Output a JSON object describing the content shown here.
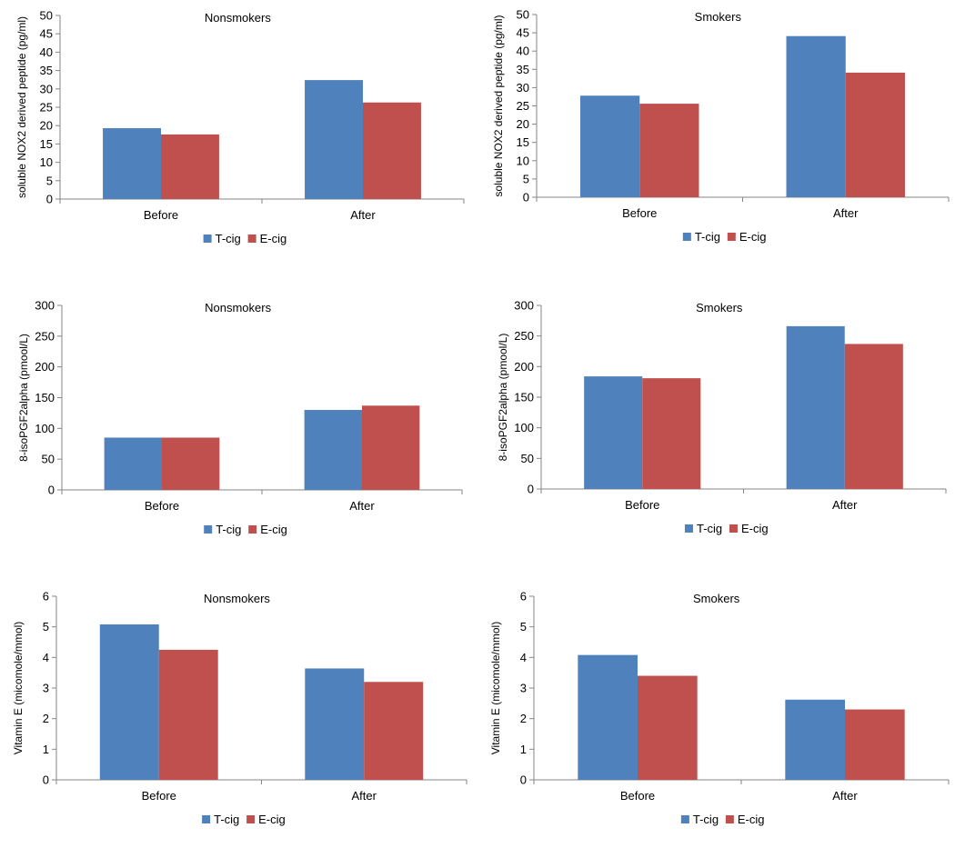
{
  "chart_data": [
    {
      "type": "bar",
      "title": "Nonsmokers",
      "ylabel": "soluble NOX2 derived peptide (pg/ml)",
      "xlabel": "",
      "categories": [
        "Before",
        "After"
      ],
      "ylim": [
        0,
        50
      ],
      "yticks": [
        "0",
        "5",
        "10",
        "15",
        "20",
        "25",
        "30",
        "35",
        "40",
        "45",
        "50"
      ],
      "grid": false,
      "legend_position": "bottom",
      "series": [
        {
          "name": "T-cig",
          "color": "#4F81BD",
          "values": [
            19.3,
            32.4
          ]
        },
        {
          "name": "E-cig",
          "color": "#C0504D",
          "values": [
            17.6,
            26.3
          ]
        }
      ]
    },
    {
      "type": "bar",
      "title": "Smokers",
      "ylabel": "soluble NOX2 derived peptide (pg/ml)",
      "xlabel": "",
      "categories": [
        "Before",
        "After"
      ],
      "ylim": [
        0,
        50
      ],
      "yticks": [
        "0",
        "5",
        "10",
        "15",
        "20",
        "25",
        "30",
        "35",
        "40",
        "45",
        "50"
      ],
      "grid": false,
      "legend_position": "bottom",
      "series": [
        {
          "name": "T-cig",
          "color": "#4F81BD",
          "values": [
            27.8,
            44.1
          ]
        },
        {
          "name": "E-cig",
          "color": "#C0504D",
          "values": [
            25.6,
            34.1
          ]
        }
      ]
    },
    {
      "type": "bar",
      "title": "Nonsmokers",
      "ylabel": "8-isoPGF2alpha (pmool/L)",
      "xlabel": "",
      "categories": [
        "Before",
        "After"
      ],
      "ylim": [
        0,
        300
      ],
      "yticks": [
        "0",
        "50",
        "100",
        "150",
        "200",
        "250",
        "300"
      ],
      "grid": false,
      "legend_position": "bottom",
      "series": [
        {
          "name": "T-cig",
          "color": "#4F81BD",
          "values": [
            85,
            130
          ]
        },
        {
          "name": "E-cig",
          "color": "#C0504D",
          "values": [
            85,
            137
          ]
        }
      ]
    },
    {
      "type": "bar",
      "title": "Smokers",
      "ylabel": "8-isoPGF2alpha (pmool/L)",
      "xlabel": "",
      "categories": [
        "Before",
        "After"
      ],
      "ylim": [
        0,
        300
      ],
      "yticks": [
        "0",
        "50",
        "100",
        "150",
        "200",
        "250",
        "300"
      ],
      "grid": false,
      "legend_position": "bottom",
      "series": [
        {
          "name": "T-cig",
          "color": "#4F81BD",
          "values": [
            184,
            266
          ]
        },
        {
          "name": "E-cig",
          "color": "#C0504D",
          "values": [
            181,
            237
          ]
        }
      ]
    },
    {
      "type": "bar",
      "title": "Nonsmokers",
      "ylabel": "Vitamin E (micomole/mmol)",
      "xlabel": "",
      "categories": [
        "Before",
        "After"
      ],
      "ylim": [
        0,
        6
      ],
      "yticks": [
        "0",
        "1",
        "2",
        "3",
        "4",
        "5",
        "6"
      ],
      "grid": false,
      "legend_position": "bottom",
      "series": [
        {
          "name": "T-cig",
          "color": "#4F81BD",
          "values": [
            5.08,
            3.64
          ]
        },
        {
          "name": "E-cig",
          "color": "#C0504D",
          "values": [
            4.25,
            3.2
          ]
        }
      ]
    },
    {
      "type": "bar",
      "title": "Smokers",
      "ylabel": "Vitamin E (micomole/mmol)",
      "xlabel": "",
      "categories": [
        "Before",
        "After"
      ],
      "ylim": [
        0,
        6
      ],
      "yticks": [
        "0",
        "1",
        "2",
        "3",
        "4",
        "5",
        "6"
      ],
      "grid": false,
      "legend_position": "bottom",
      "series": [
        {
          "name": "T-cig",
          "color": "#4F81BD",
          "values": [
            4.08,
            2.62
          ]
        },
        {
          "name": "E-cig",
          "color": "#C0504D",
          "values": [
            3.4,
            2.3
          ]
        }
      ]
    }
  ]
}
